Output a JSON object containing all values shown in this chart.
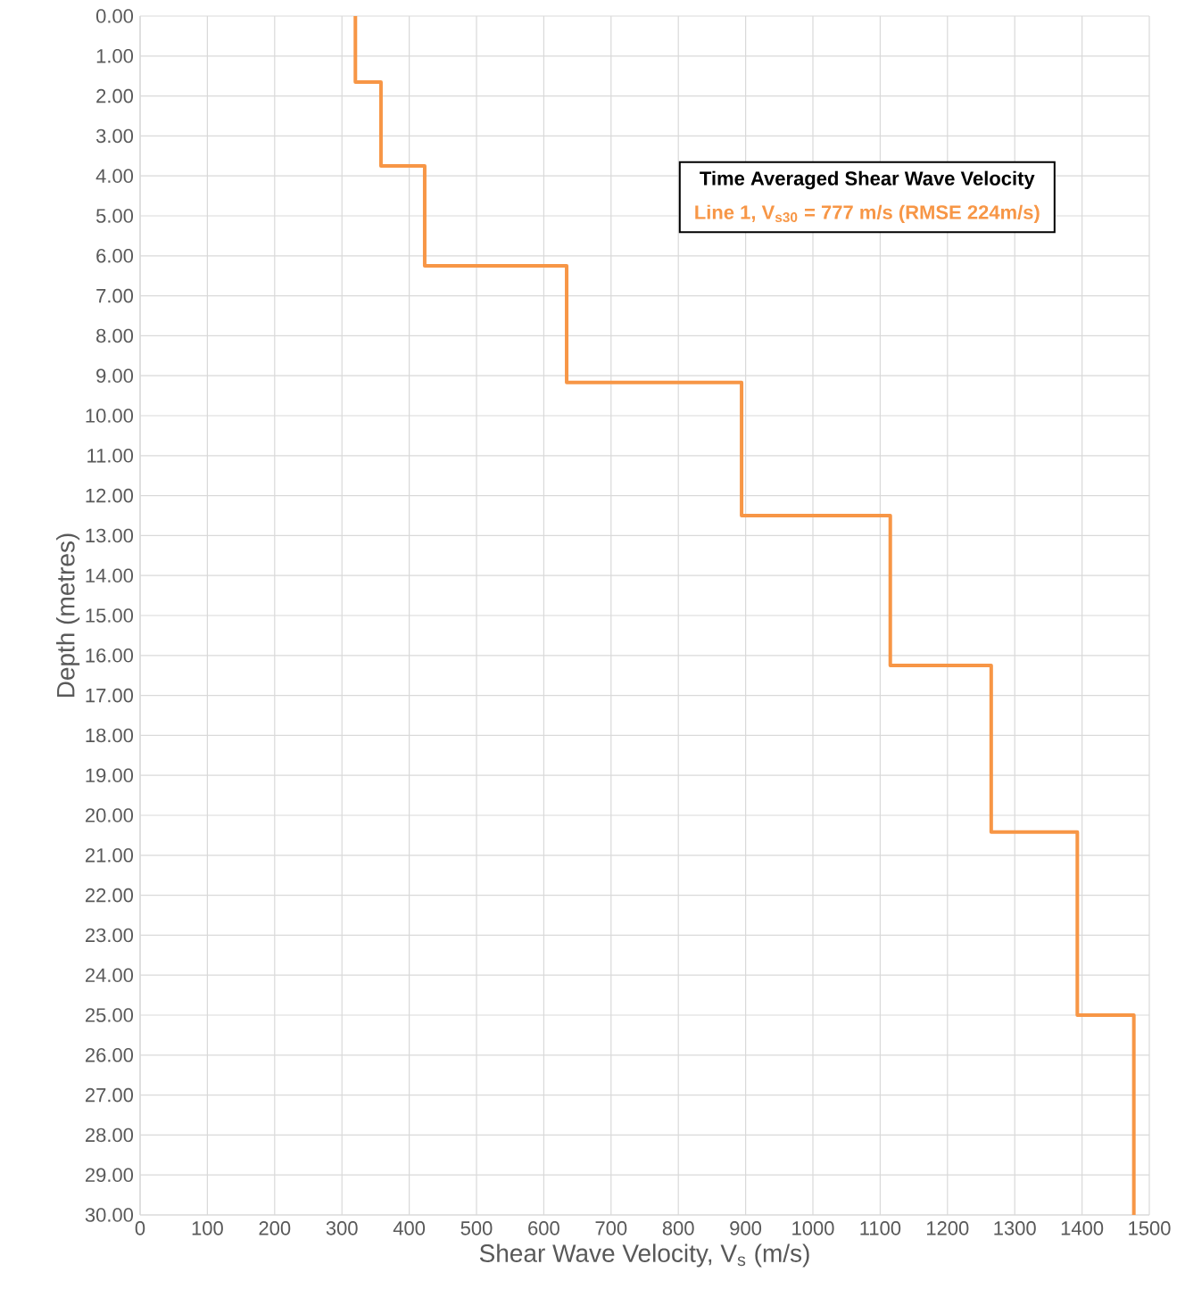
{
  "chart_data": {
    "type": "line",
    "xlabel": "Shear Wave Velocity, V$_{s}$ (m/s)",
    "ylabel": "Depth (metres)",
    "legend_title": "Time Averaged Shear Wave Velocity",
    "legend": "top right",
    "grid": true,
    "marker": "none",
    "line_style": "solid",
    "xlim": [
      0,
      1500
    ],
    "xticks": [
      0,
      100,
      200,
      300,
      400,
      500,
      600,
      700,
      800,
      900,
      1000,
      1100,
      1200,
      1300,
      1400,
      1500
    ],
    "ylim": [
      30,
      0
    ],
    "yticks": [
      {
        "value": 0,
        "label": "0.00"
      },
      {
        "value": 1,
        "label": "1.00"
      },
      {
        "value": 2,
        "label": "2.00"
      },
      {
        "value": 3,
        "label": "3.00"
      },
      {
        "value": 4,
        "label": "4.00"
      },
      {
        "value": 5,
        "label": "5.00"
      },
      {
        "value": 6,
        "label": "6.00"
      },
      {
        "value": 7,
        "label": "7.00"
      },
      {
        "value": 8,
        "label": "8.00"
      },
      {
        "value": 9,
        "label": "9.00"
      },
      {
        "value": 10,
        "label": "10.00"
      },
      {
        "value": 11,
        "label": "11.00"
      },
      {
        "value": 12,
        "label": "12.00"
      },
      {
        "value": 13,
        "label": "13.00"
      },
      {
        "value": 14,
        "label": "14.00"
      },
      {
        "value": 15,
        "label": "15.00"
      },
      {
        "value": 16,
        "label": "16.00"
      },
      {
        "value": 17,
        "label": "17.00"
      },
      {
        "value": 18,
        "label": "18.00"
      },
      {
        "value": 19,
        "label": "19.00"
      },
      {
        "value": 20,
        "label": "20.00"
      },
      {
        "value": 21,
        "label": "21.00"
      },
      {
        "value": 22,
        "label": "22.00"
      },
      {
        "value": 23,
        "label": "23.00"
      },
      {
        "value": 24,
        "label": "24.00"
      },
      {
        "value": 25,
        "label": "25.00"
      },
      {
        "value": 26,
        "label": "26.00"
      },
      {
        "value": 27,
        "label": "27.00"
      },
      {
        "value": 28,
        "label": "28.00"
      },
      {
        "value": 29,
        "label": "29.00"
      },
      {
        "value": 30,
        "label": "30.00"
      }
    ],
    "series": [
      {
        "name": "Line 1, V$_{s30}$ = 777 m/s (RMSE 224m/s)",
        "color": "#f79646",
        "x": [
          320,
          320,
          358,
          358,
          423,
          423,
          634,
          634,
          894,
          894,
          1115,
          1115,
          1265,
          1265,
          1393,
          1393,
          1477,
          1477
        ],
        "values": [
          0,
          1.65,
          1.65,
          3.75,
          3.75,
          6.25,
          6.25,
          9.17,
          9.17,
          12.5,
          12.5,
          16.25,
          16.25,
          20.42,
          20.42,
          25,
          25,
          30
        ]
      }
    ]
  }
}
